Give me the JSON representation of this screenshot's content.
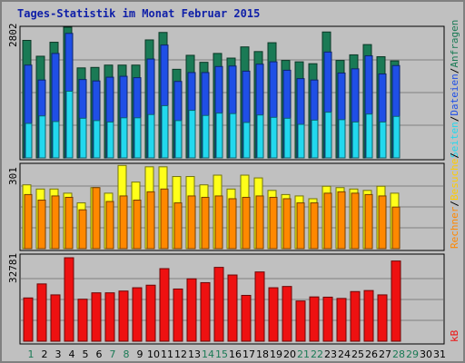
{
  "window": {
    "title": "Tages-Statistik im Monat Februar 2015"
  },
  "colors": {
    "background": "#c0c0c0",
    "title": "#1020a8",
    "anfragen": "#1a7a55",
    "dateien": "#1f4fe6",
    "seiten": "#22d8ee",
    "besuche": "#ffff1a",
    "rechner": "#ff8800",
    "kb": "#ee1111",
    "weekday_label": "#000000",
    "weekend_label": "#1a7a55"
  },
  "legend": {
    "anfragen": "Anfragen",
    "sep1": "/",
    "dateien": "Dateien",
    "sep2": "/",
    "seiten": "Seiten",
    "sep3": "/",
    "besuche": "Besuche",
    "sep4": "/",
    "rechner": "Rechner",
    "kb": "kB"
  },
  "chart_data": [
    {
      "type": "bar",
      "panel": "anfragen-dateien-seiten",
      "max_label": "2802",
      "ylim": [
        0,
        2802
      ],
      "grid": true,
      "categories": [
        "1",
        "2",
        "3",
        "4",
        "5",
        "6",
        "7",
        "8",
        "9",
        "10",
        "11",
        "12",
        "13",
        "14",
        "15",
        "16",
        "17",
        "18",
        "19",
        "20",
        "21",
        "22",
        "23",
        "24",
        "25",
        "26",
        "27",
        "28",
        "29",
        "30",
        "31"
      ],
      "weekend_days": [
        "1",
        "7",
        "8",
        "14",
        "15",
        "21",
        "22",
        "28",
        "29"
      ],
      "series": [
        {
          "name": "Anfragen",
          "values": [
            2520,
            2180,
            2480,
            2802,
            1930,
            1940,
            1990,
            1990,
            1990,
            2530,
            2690,
            1900,
            2200,
            2050,
            2240,
            2140,
            2380,
            2280,
            2470,
            2090,
            2060,
            2020,
            2700,
            2090,
            2210,
            2430,
            2170,
            2080,
            null,
            null,
            null
          ]
        },
        {
          "name": "Dateien",
          "values": [
            1990,
            1670,
            2240,
            2670,
            1680,
            1650,
            1730,
            1750,
            1720,
            2120,
            2420,
            1640,
            1830,
            1830,
            1960,
            1970,
            1860,
            2010,
            2060,
            1880,
            1700,
            1670,
            2270,
            1820,
            1910,
            2190,
            1800,
            1980,
            null,
            null,
            null
          ]
        },
        {
          "name": "Seiten",
          "values": [
            740,
            900,
            780,
            1430,
            850,
            800,
            770,
            860,
            860,
            930,
            1120,
            800,
            1020,
            910,
            960,
            950,
            760,
            920,
            870,
            850,
            720,
            810,
            980,
            820,
            770,
            940,
            770,
            890,
            null,
            null,
            null
          ]
        }
      ]
    },
    {
      "type": "bar",
      "panel": "besuche-rechner",
      "max_label": "301",
      "ylim": [
        0,
        301
      ],
      "grid": true,
      "categories": [
        "1",
        "2",
        "3",
        "4",
        "5",
        "6",
        "7",
        "8",
        "9",
        "10",
        "11",
        "12",
        "13",
        "14",
        "15",
        "16",
        "17",
        "18",
        "19",
        "20",
        "21",
        "22",
        "23",
        "24",
        "25",
        "26",
        "27",
        "28",
        "29",
        "30",
        "31"
      ],
      "series": [
        {
          "name": "Besuche",
          "values": [
            230,
            215,
            215,
            200,
            165,
            220,
            200,
            300,
            240,
            295,
            295,
            260,
            260,
            230,
            265,
            215,
            265,
            255,
            210,
            195,
            190,
            180,
            225,
            220,
            215,
            210,
            225,
            200,
            null,
            null,
            null
          ]
        },
        {
          "name": "Rechner",
          "values": [
            195,
            175,
            190,
            185,
            140,
            220,
            170,
            190,
            175,
            205,
            215,
            165,
            190,
            185,
            190,
            180,
            185,
            190,
            185,
            180,
            165,
            165,
            200,
            205,
            200,
            195,
            190,
            150,
            null,
            null,
            null
          ]
        }
      ]
    },
    {
      "type": "bar",
      "panel": "kb",
      "max_label": "32781",
      "ylim": [
        0,
        32781
      ],
      "grid": true,
      "categories": [
        "1",
        "2",
        "3",
        "4",
        "5",
        "6",
        "7",
        "8",
        "9",
        "10",
        "11",
        "12",
        "13",
        "14",
        "15",
        "16",
        "17",
        "18",
        "19",
        "20",
        "21",
        "22",
        "23",
        "24",
        "25",
        "26",
        "27",
        "28",
        "29",
        "30",
        "31"
      ],
      "series": [
        {
          "name": "kB",
          "values": [
            17000,
            22500,
            18200,
            32781,
            16500,
            19000,
            19000,
            19700,
            21000,
            22000,
            28500,
            20500,
            24500,
            23000,
            29000,
            26000,
            18000,
            27200,
            21000,
            21500,
            15800,
            17400,
            17300,
            16800,
            19500,
            19900,
            18200,
            31500,
            null,
            null,
            null
          ]
        }
      ]
    }
  ]
}
